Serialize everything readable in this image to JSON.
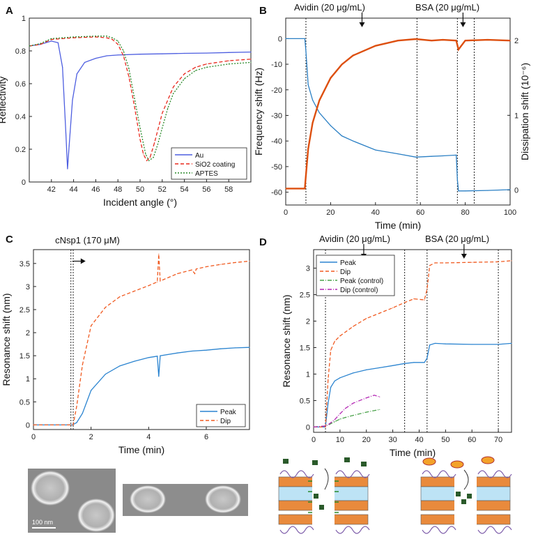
{
  "panels": {
    "A": "A",
    "B": "B",
    "C": "C",
    "D": "D"
  },
  "colors": {
    "blue": "#4d5ee0",
    "red": "#e8281c",
    "green": "#2a8a2a",
    "magenta": "#c026c0",
    "bBlue": "#2a7fc4",
    "bOrange": "#dd4f0f",
    "cBlue": "#2b84d0",
    "cRed": "#f05a20",
    "dGreen": "#4aa24a",
    "dMagenta": "#b427b4"
  },
  "chart_data": [
    {
      "id": "A",
      "type": "line",
      "xlabel": "Incident angle (°)",
      "ylabel": "Reflectivity",
      "xlim": [
        40,
        60
      ],
      "ylim": [
        0,
        1
      ],
      "xticks": [
        42,
        44,
        46,
        48,
        50,
        52,
        54,
        56,
        58
      ],
      "yticks": [
        0,
        0.2,
        0.4,
        0.6,
        0.8,
        1
      ],
      "xtick_labels": [
        "42",
        "44",
        "46",
        "48",
        "50",
        "52",
        "54",
        "56",
        "58"
      ],
      "ytick_labels": [
        "0",
        "0.2",
        "0.4",
        "0.6",
        "0.8",
        "1"
      ],
      "legend": {
        "position": "bottom-right",
        "entries": [
          "Au",
          "SiO2 coating",
          "APTES"
        ]
      },
      "series": [
        {
          "name": "Au",
          "style": "solid",
          "x": [
            40,
            41,
            42,
            42.6,
            43,
            43.3,
            43.45,
            43.6,
            43.9,
            44.3,
            45,
            46,
            47,
            48,
            50,
            52,
            54,
            56,
            58,
            60
          ],
          "y": [
            0.83,
            0.84,
            0.86,
            0.85,
            0.7,
            0.3,
            0.08,
            0.22,
            0.5,
            0.66,
            0.73,
            0.755,
            0.77,
            0.775,
            0.78,
            0.782,
            0.785,
            0.787,
            0.79,
            0.793
          ]
        },
        {
          "name": "SiO2 coating",
          "style": "dashed",
          "x": [
            40,
            41,
            42,
            44,
            46,
            47,
            47.5,
            48,
            48.5,
            49,
            49.5,
            50,
            50.3,
            50.6,
            50.9,
            51.3,
            52,
            53,
            54,
            55,
            56,
            58,
            60
          ],
          "y": [
            0.83,
            0.84,
            0.87,
            0.88,
            0.885,
            0.88,
            0.87,
            0.84,
            0.77,
            0.64,
            0.46,
            0.26,
            0.17,
            0.13,
            0.15,
            0.24,
            0.42,
            0.58,
            0.66,
            0.7,
            0.72,
            0.74,
            0.75
          ]
        },
        {
          "name": "APTES",
          "style": "dotted",
          "x": [
            40,
            41,
            42,
            44,
            46,
            47,
            47.5,
            48,
            48.5,
            49,
            49.5,
            50,
            50.5,
            50.8,
            51.2,
            51.6,
            52,
            52.5,
            53,
            54,
            55,
            56,
            58,
            60
          ],
          "y": [
            0.83,
            0.845,
            0.875,
            0.885,
            0.89,
            0.89,
            0.88,
            0.86,
            0.8,
            0.69,
            0.51,
            0.33,
            0.17,
            0.13,
            0.15,
            0.23,
            0.33,
            0.45,
            0.54,
            0.63,
            0.68,
            0.7,
            0.72,
            0.73
          ]
        }
      ]
    },
    {
      "id": "B",
      "type": "line",
      "xlabel": "Time (min)",
      "ylabel": "Frequency shift (Hz)",
      "y2label": "Dissipation shift (10⁻⁶)",
      "xlim": [
        0,
        100
      ],
      "ylim": [
        -65,
        8
      ],
      "y2lim": [
        -0.2,
        2.3
      ],
      "xticks": [
        0,
        20,
        40,
        60,
        80,
        100
      ],
      "yticks": [
        0,
        -10,
        -20,
        -30,
        -40,
        -50,
        -60
      ],
      "y2ticks": [
        0,
        1,
        2
      ],
      "xtick_labels": [
        "0",
        "20",
        "40",
        "60",
        "80",
        "100"
      ],
      "ytick_labels": [
        "0",
        "-10",
        "-20",
        "-30",
        "-40",
        "-50",
        "-60"
      ],
      "y2tick_labels": [
        "0",
        "1",
        "2"
      ],
      "annotations": [
        "Avidin (20 μg/mL)",
        "BSA (20 μg/mL)"
      ],
      "arrows_x": [
        34,
        79
      ],
      "vlines": [
        9,
        58.5,
        76.5,
        84
      ],
      "series": [
        {
          "name": "Frequency shift",
          "axis": "left",
          "x": [
            0,
            8.5,
            9,
            10,
            12,
            15,
            20,
            25,
            30,
            40,
            50,
            58,
            65,
            70,
            76,
            76.5,
            77,
            80,
            90,
            100
          ],
          "y": [
            0,
            0,
            -5,
            -18,
            -24,
            -29,
            -34,
            -38,
            -40,
            -43.5,
            -45,
            -46.3,
            -46,
            -45.8,
            -45.5,
            -55,
            -59.5,
            -59.5,
            -59.3,
            -59
          ]
        },
        {
          "name": "Dissipation shift",
          "axis": "right",
          "x": [
            0,
            8.5,
            9,
            10,
            12,
            15,
            20,
            25,
            30,
            40,
            50,
            58,
            65,
            70,
            76,
            77,
            80,
            90,
            100
          ],
          "y": [
            0.02,
            0.02,
            0.2,
            0.55,
            0.9,
            1.2,
            1.5,
            1.68,
            1.8,
            1.93,
            2.0,
            2.02,
            2.0,
            2.01,
            2.0,
            1.88,
            2.0,
            2.01,
            2.0
          ]
        }
      ]
    },
    {
      "id": "C",
      "type": "line",
      "title": "cNsp1 (170 μM)",
      "xlabel": "Time (min)",
      "ylabel": "Resonance shift (nm)",
      "xlim": [
        0,
        7.5
      ],
      "ylim": [
        -0.1,
        3.8
      ],
      "xticks": [
        0,
        2,
        4,
        6
      ],
      "yticks": [
        0,
        0.5,
        1,
        1.5,
        2,
        2.5,
        3,
        3.5
      ],
      "xtick_labels": [
        "0",
        "2",
        "4",
        "6"
      ],
      "ytick_labels": [
        "0",
        "0.5",
        "1",
        "1.5",
        "2",
        "2.5",
        "3",
        "3.5"
      ],
      "legend": {
        "position": "bottom-right",
        "entries": [
          "Peak",
          "Dip"
        ]
      },
      "vlines": [
        1.3,
        1.38
      ],
      "arrow_from_x": 1.35,
      "series": [
        {
          "name": "Peak",
          "style": "solid",
          "x": [
            0,
            1.3,
            1.35,
            1.5,
            1.7,
            2,
            2.5,
            3,
            3.5,
            4,
            4.3,
            4.35,
            4.4,
            5,
            5.5,
            6,
            6.5,
            7,
            7.5
          ],
          "y": [
            0,
            0,
            0,
            0.05,
            0.25,
            0.75,
            1.1,
            1.28,
            1.38,
            1.46,
            1.49,
            1.05,
            1.5,
            1.56,
            1.6,
            1.62,
            1.65,
            1.67,
            1.68
          ]
        },
        {
          "name": "Dip",
          "style": "dashed",
          "x": [
            0,
            1.3,
            1.38,
            1.5,
            1.7,
            2,
            2.5,
            3,
            3.5,
            4,
            4.3,
            4.35,
            4.4,
            5,
            5.5,
            5.6,
            5.65,
            6,
            6.5,
            7,
            7.5
          ],
          "y": [
            0,
            0,
            0,
            0.4,
            1.3,
            2.15,
            2.55,
            2.78,
            2.9,
            3.02,
            3.1,
            3.7,
            3.12,
            3.28,
            3.36,
            3.28,
            3.38,
            3.43,
            3.48,
            3.52,
            3.55
          ]
        }
      ]
    },
    {
      "id": "D",
      "type": "line",
      "xlabel": "Time (min)",
      "ylabel": "Resonance shift (nm)",
      "xlim": [
        0,
        75
      ],
      "ylim": [
        -0.1,
        3.35
      ],
      "xticks": [
        0,
        10,
        20,
        30,
        40,
        50,
        60,
        70
      ],
      "yticks": [
        0,
        0.5,
        1,
        1.5,
        2,
        2.5,
        3
      ],
      "xtick_labels": [
        "0",
        "10",
        "20",
        "30",
        "40",
        "50",
        "60",
        "70"
      ],
      "ytick_labels": [
        "0",
        "0.5",
        "1",
        "1.5",
        "2",
        "2.5",
        "3"
      ],
      "annotations": [
        "Avidin (20 μg/mL)",
        "BSA (20 μg/mL)"
      ],
      "arrows_x": [
        19,
        57
      ],
      "vlines": [
        4.5,
        34.5,
        43,
        70
      ],
      "legend": {
        "position": "top-left",
        "entries": [
          "Peak",
          "Dip",
          "Peak (control)",
          "Dip (control)"
        ]
      },
      "series": [
        {
          "name": "Peak",
          "style": "solid",
          "x": [
            0,
            4.5,
            5.5,
            6.5,
            8,
            10,
            15,
            20,
            25,
            30,
            34.5,
            38,
            42,
            43,
            44,
            46,
            50,
            60,
            70,
            75
          ],
          "y": [
            0,
            0,
            0.45,
            0.75,
            0.87,
            0.93,
            1.02,
            1.08,
            1.12,
            1.16,
            1.2,
            1.22,
            1.22,
            1.3,
            1.55,
            1.58,
            1.57,
            1.56,
            1.56,
            1.58
          ]
        },
        {
          "name": "Dip",
          "style": "dashed",
          "x": [
            0,
            4.5,
            5.5,
            6.5,
            8,
            10,
            15,
            20,
            25,
            30,
            34.5,
            38,
            42,
            43,
            44,
            46,
            50,
            60,
            70,
            75
          ],
          "y": [
            0,
            0,
            0.9,
            1.45,
            1.62,
            1.72,
            1.9,
            2.05,
            2.15,
            2.25,
            2.35,
            2.42,
            2.4,
            2.6,
            3.05,
            3.1,
            3.1,
            3.11,
            3.12,
            3.14
          ]
        },
        {
          "name": "Peak (control)",
          "style": "dashdot",
          "x": [
            0,
            4.5,
            6,
            8,
            10,
            12,
            15,
            20,
            25
          ],
          "y": [
            0,
            0.02,
            0.05,
            0.1,
            0.15,
            0.18,
            0.22,
            0.28,
            0.33
          ]
        },
        {
          "name": "Dip (control)",
          "style": "dashdot",
          "x": [
            0,
            4.5,
            6,
            8,
            10,
            12,
            15,
            20,
            23,
            25
          ],
          "y": [
            0,
            0.02,
            0.06,
            0.14,
            0.25,
            0.35,
            0.45,
            0.55,
            0.6,
            0.57
          ]
        }
      ]
    }
  ],
  "micrograph": {
    "scale_bar": "100 nm"
  }
}
